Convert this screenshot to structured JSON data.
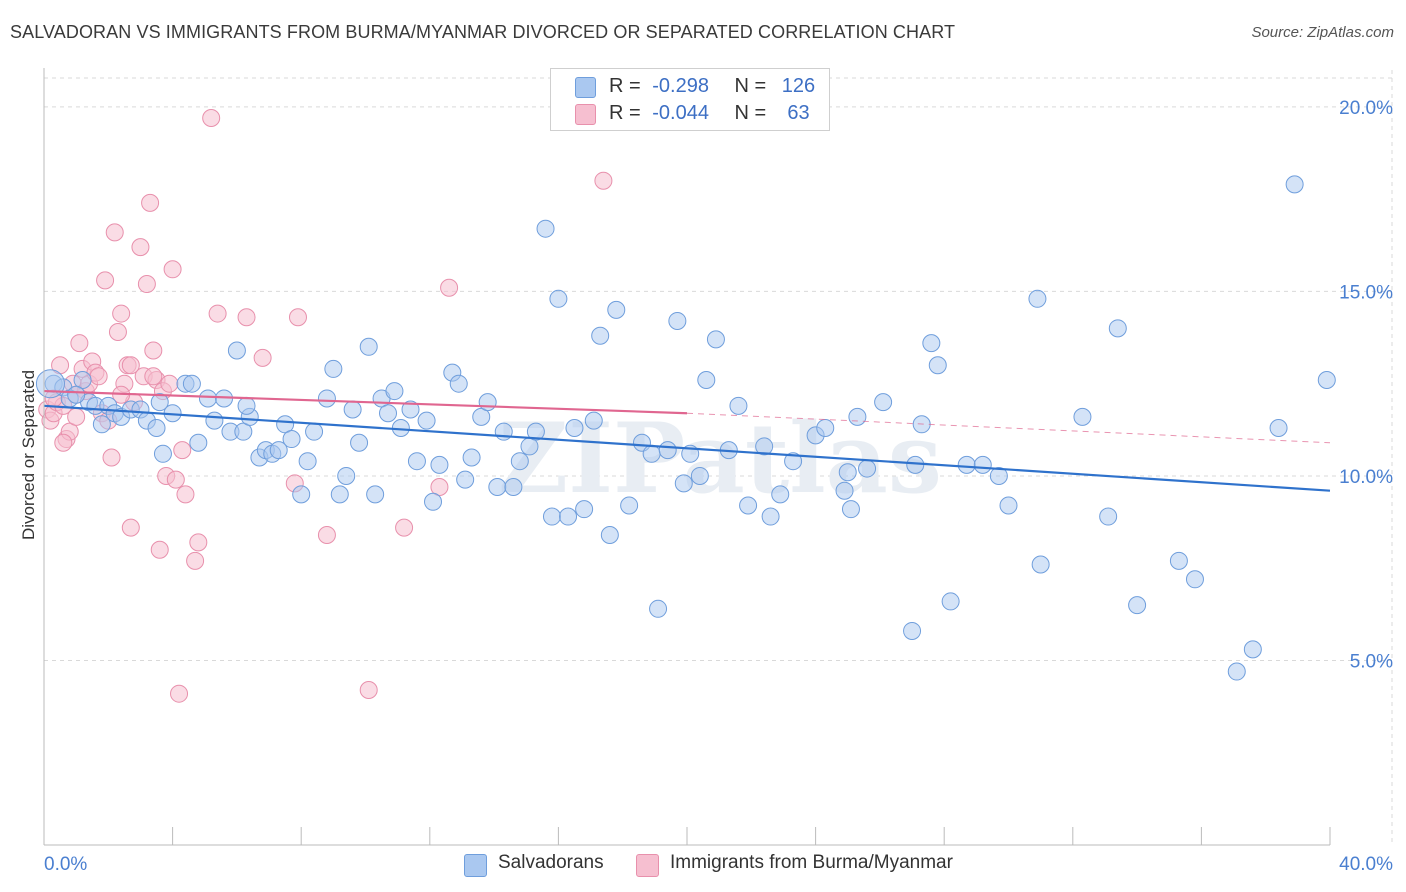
{
  "title": "SALVADORAN VS IMMIGRANTS FROM BURMA/MYANMAR DIVORCED OR SEPARATED CORRELATION CHART",
  "source": "Source: ZipAtlas.com",
  "watermark": "ZIPatlas",
  "colors": {
    "blue_fill": "#aac8f0",
    "blue_stroke": "#6f9edc",
    "blue_line": "#2f72cc",
    "pink_fill": "#f6bfd0",
    "pink_stroke": "#e890ac",
    "pink_line": "#e06690",
    "grid": "#d9d9d9",
    "tick_text": "#4a7fd0"
  },
  "legend_top": {
    "rows": [
      {
        "r_label": "R =",
        "r_value": "-0.298",
        "n_label": "N =",
        "n_value": "126"
      },
      {
        "r_label": "R =",
        "r_value": "-0.044",
        "n_label": "N =",
        "n_value": " 63"
      }
    ]
  },
  "legend_bottom": [
    "Salvadorans",
    "Immigrants from Burma/Myanmar"
  ],
  "chart_data": {
    "type": "scatter",
    "title": "SALVADORAN VS IMMIGRANTS FROM BURMA/MYANMAR DIVORCED OR SEPARATED CORRELATION CHART",
    "xlabel": "",
    "ylabel": "Divorced or Separated",
    "xlim": [
      0,
      40
    ],
    "ylim": [
      0,
      21
    ],
    "x_tick_labels": [
      "0.0%",
      "40.0%"
    ],
    "y_ticks": [
      5,
      10,
      15,
      20
    ],
    "y_tick_labels": [
      "5.0%",
      "10.0%",
      "15.0%",
      "20.0%"
    ],
    "grid": true,
    "legend_placement": "top-center",
    "series": [
      {
        "name": "Salvadorans",
        "r": -0.298,
        "n": 126,
        "trend": {
          "x": [
            0,
            40
          ],
          "y": [
            11.9,
            9.6
          ]
        },
        "points": [
          [
            0.3,
            12.5
          ],
          [
            0.6,
            12.4
          ],
          [
            0.8,
            12.1
          ],
          [
            1.2,
            12.6
          ],
          [
            1.4,
            12.0
          ],
          [
            1.6,
            11.9
          ],
          [
            1.8,
            11.4
          ],
          [
            2.0,
            11.9
          ],
          [
            2.2,
            11.7
          ],
          [
            2.4,
            11.6
          ],
          [
            2.7,
            11.8
          ],
          [
            3.0,
            11.8
          ],
          [
            3.2,
            11.5
          ],
          [
            3.5,
            11.3
          ],
          [
            3.7,
            10.6
          ],
          [
            4.0,
            11.7
          ],
          [
            4.4,
            12.5
          ],
          [
            4.6,
            12.5
          ],
          [
            4.8,
            10.9
          ],
          [
            5.1,
            12.1
          ],
          [
            5.3,
            11.5
          ],
          [
            5.6,
            12.1
          ],
          [
            5.8,
            11.2
          ],
          [
            6.0,
            13.4
          ],
          [
            6.2,
            11.2
          ],
          [
            6.4,
            11.6
          ],
          [
            6.7,
            10.5
          ],
          [
            6.9,
            10.7
          ],
          [
            7.1,
            10.6
          ],
          [
            7.3,
            10.7
          ],
          [
            7.5,
            11.4
          ],
          [
            7.7,
            11.0
          ],
          [
            8.0,
            9.5
          ],
          [
            8.2,
            10.4
          ],
          [
            8.4,
            11.2
          ],
          [
            8.8,
            12.1
          ],
          [
            9.0,
            12.9
          ],
          [
            9.2,
            9.5
          ],
          [
            9.4,
            10.0
          ],
          [
            9.6,
            11.8
          ],
          [
            9.8,
            10.9
          ],
          [
            10.1,
            13.5
          ],
          [
            10.3,
            9.5
          ],
          [
            10.5,
            12.1
          ],
          [
            10.7,
            11.7
          ],
          [
            10.9,
            12.3
          ],
          [
            11.1,
            11.3
          ],
          [
            11.4,
            11.8
          ],
          [
            11.6,
            10.4
          ],
          [
            11.9,
            11.5
          ],
          [
            12.1,
            9.3
          ],
          [
            12.3,
            10.3
          ],
          [
            12.7,
            12.8
          ],
          [
            12.9,
            12.5
          ],
          [
            13.1,
            9.9
          ],
          [
            13.3,
            10.5
          ],
          [
            13.6,
            11.6
          ],
          [
            13.8,
            12.0
          ],
          [
            14.1,
            9.7
          ],
          [
            14.3,
            11.2
          ],
          [
            14.6,
            9.7
          ],
          [
            14.8,
            10.4
          ],
          [
            15.1,
            10.8
          ],
          [
            15.3,
            11.2
          ],
          [
            15.6,
            16.7
          ],
          [
            15.8,
            8.9
          ],
          [
            16.0,
            14.8
          ],
          [
            16.3,
            8.9
          ],
          [
            16.5,
            11.3
          ],
          [
            16.8,
            9.1
          ],
          [
            17.1,
            11.5
          ],
          [
            17.3,
            13.8
          ],
          [
            17.6,
            8.4
          ],
          [
            17.8,
            14.5
          ],
          [
            18.2,
            9.2
          ],
          [
            18.6,
            10.9
          ],
          [
            18.9,
            10.6
          ],
          [
            19.1,
            6.4
          ],
          [
            19.4,
            10.7
          ],
          [
            19.7,
            14.2
          ],
          [
            19.9,
            9.8
          ],
          [
            20.1,
            10.6
          ],
          [
            20.4,
            10.0
          ],
          [
            20.6,
            12.6
          ],
          [
            20.9,
            13.7
          ],
          [
            21.3,
            10.7
          ],
          [
            21.6,
            11.9
          ],
          [
            21.9,
            9.2
          ],
          [
            22.4,
            10.8
          ],
          [
            22.6,
            8.9
          ],
          [
            22.9,
            9.5
          ],
          [
            23.3,
            10.4
          ],
          [
            24.0,
            11.1
          ],
          [
            24.3,
            11.3
          ],
          [
            24.9,
            9.6
          ],
          [
            25.1,
            9.1
          ],
          [
            25.3,
            11.6
          ],
          [
            25.6,
            10.2
          ],
          [
            26.1,
            12.0
          ],
          [
            27.0,
            5.8
          ],
          [
            27.1,
            10.3
          ],
          [
            27.3,
            11.4
          ],
          [
            27.6,
            13.6
          ],
          [
            27.8,
            13.0
          ],
          [
            28.2,
            6.6
          ],
          [
            28.7,
            10.3
          ],
          [
            29.2,
            10.3
          ],
          [
            29.7,
            10.0
          ],
          [
            30.0,
            9.2
          ],
          [
            31.0,
            7.6
          ],
          [
            30.9,
            14.8
          ],
          [
            32.3,
            11.6
          ],
          [
            33.1,
            8.9
          ],
          [
            33.4,
            14.0
          ],
          [
            34.0,
            6.5
          ],
          [
            35.3,
            7.7
          ],
          [
            35.8,
            7.2
          ],
          [
            37.1,
            4.7
          ],
          [
            37.6,
            5.3
          ],
          [
            38.4,
            11.3
          ],
          [
            38.9,
            17.9
          ],
          [
            39.9,
            12.6
          ],
          [
            6.3,
            11.9
          ],
          [
            3.6,
            12.0
          ],
          [
            1.0,
            12.2
          ],
          [
            25.0,
            10.1
          ]
        ]
      },
      {
        "name": "Immigrants from Burma/Myanmar",
        "r": -0.044,
        "n": 63,
        "trend": {
          "x": [
            0,
            20
          ],
          "y": [
            12.3,
            11.7
          ]
        },
        "trend_extension": {
          "x": [
            20,
            40
          ],
          "y": [
            11.7,
            10.9
          ]
        },
        "points": [
          [
            0.1,
            11.8
          ],
          [
            0.2,
            11.5
          ],
          [
            0.3,
            11.7
          ],
          [
            0.4,
            12.0
          ],
          [
            0.5,
            13.0
          ],
          [
            0.6,
            11.9
          ],
          [
            0.7,
            11.0
          ],
          [
            0.8,
            11.2
          ],
          [
            0.9,
            12.5
          ],
          [
            1.0,
            11.6
          ],
          [
            1.1,
            13.6
          ],
          [
            1.2,
            12.9
          ],
          [
            1.3,
            12.3
          ],
          [
            1.4,
            12.5
          ],
          [
            1.5,
            13.1
          ],
          [
            1.6,
            12.8
          ],
          [
            1.8,
            11.7
          ],
          [
            1.9,
            15.3
          ],
          [
            2.0,
            11.5
          ],
          [
            2.1,
            10.5
          ],
          [
            2.2,
            16.6
          ],
          [
            2.3,
            13.9
          ],
          [
            2.4,
            14.4
          ],
          [
            2.5,
            12.5
          ],
          [
            2.6,
            13.0
          ],
          [
            2.7,
            8.6
          ],
          [
            2.8,
            12.0
          ],
          [
            3.0,
            16.2
          ],
          [
            3.1,
            12.7
          ],
          [
            3.2,
            15.2
          ],
          [
            3.3,
            17.4
          ],
          [
            3.4,
            13.4
          ],
          [
            3.5,
            12.6
          ],
          [
            3.6,
            8.0
          ],
          [
            3.7,
            12.3
          ],
          [
            3.8,
            10.0
          ],
          [
            3.9,
            12.5
          ],
          [
            4.0,
            15.6
          ],
          [
            4.1,
            9.9
          ],
          [
            4.2,
            4.1
          ],
          [
            4.3,
            10.7
          ],
          [
            4.4,
            9.5
          ],
          [
            4.7,
            7.7
          ],
          [
            4.8,
            8.2
          ],
          [
            5.2,
            19.7
          ],
          [
            5.4,
            14.4
          ],
          [
            6.3,
            14.3
          ],
          [
            6.8,
            13.2
          ],
          [
            7.8,
            9.8
          ],
          [
            7.9,
            14.3
          ],
          [
            8.8,
            8.4
          ],
          [
            10.1,
            4.2
          ],
          [
            11.2,
            8.6
          ],
          [
            12.3,
            9.7
          ],
          [
            12.6,
            15.1
          ],
          [
            17.4,
            18.0
          ],
          [
            0.3,
            12.1
          ],
          [
            0.6,
            10.9
          ],
          [
            1.7,
            12.7
          ],
          [
            2.7,
            13.0
          ],
          [
            3.4,
            12.7
          ],
          [
            1.0,
            12.2
          ],
          [
            2.4,
            12.2
          ]
        ]
      }
    ]
  }
}
